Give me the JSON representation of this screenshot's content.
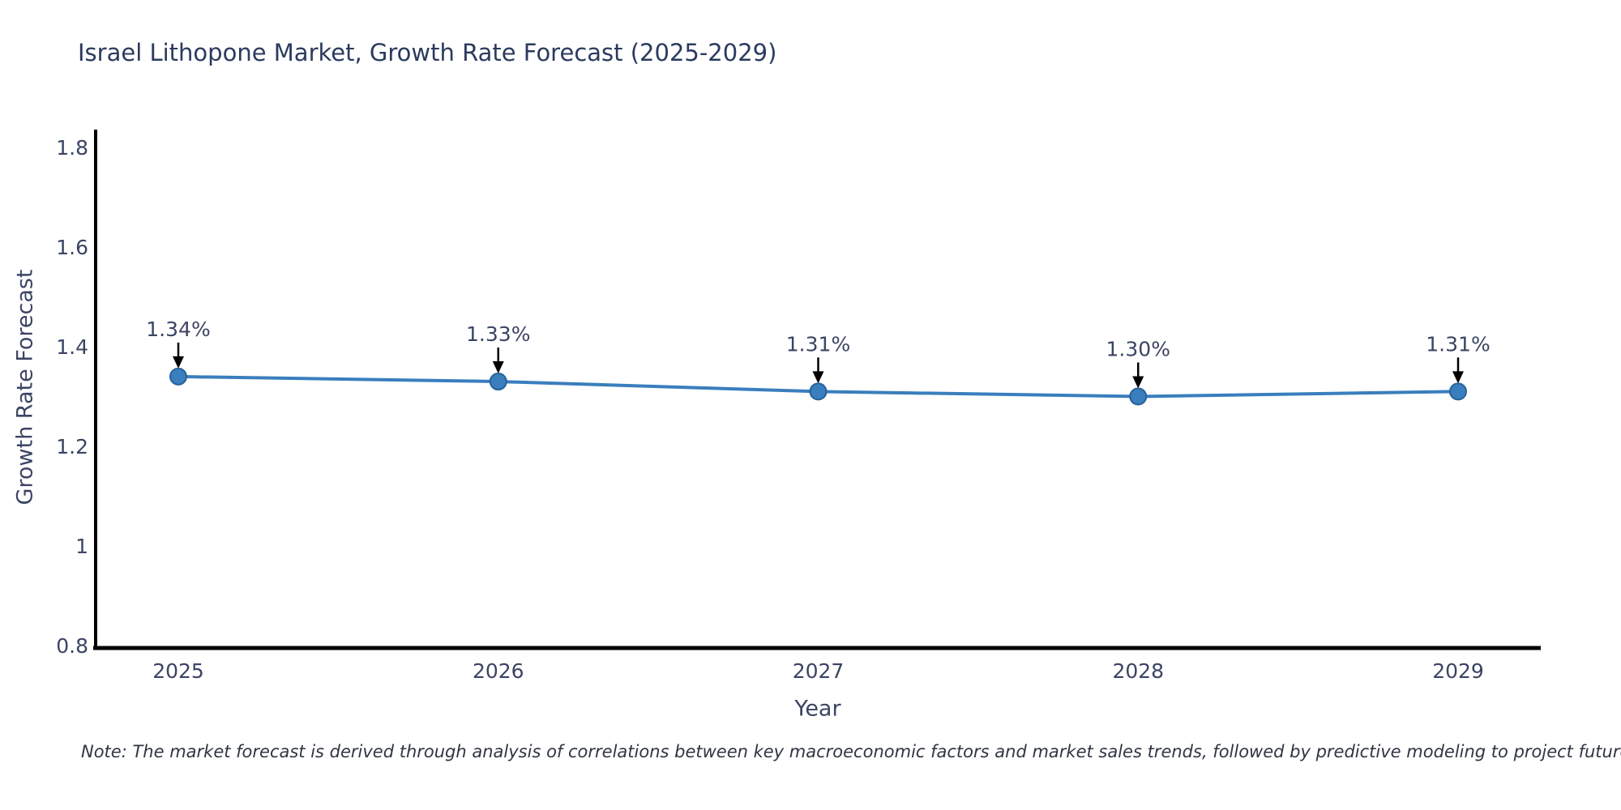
{
  "title": "Israel Lithopone Market, Growth Rate Forecast (2025-2029)",
  "note": "Note: The market forecast is derived through analysis of correlations between key macroeconomic factors and market sales trends, followed by predictive modeling to project future sales",
  "colors": {
    "title_text": "#2b3a5e",
    "axis_text": "#3b4463",
    "note_text": "#2f3542",
    "line": "#3a7ebd",
    "marker_fill": "#3a7ebd",
    "marker_edge": "#26629b",
    "spine": "#000000",
    "arrow": "#000000"
  },
  "chart_data": {
    "type": "line",
    "title": "Israel Lithopone Market, Growth Rate Forecast (2025-2029)",
    "categories": [
      "2025",
      "2026",
      "2027",
      "2028",
      "2029"
    ],
    "x": [
      2025,
      2026,
      2027,
      2028,
      2029
    ],
    "values": [
      1.34,
      1.33,
      1.31,
      1.3,
      1.31
    ],
    "point_labels": [
      "1.34%",
      "1.33%",
      "1.31%",
      "1.30%",
      "1.31%"
    ],
    "xlabel": "Year",
    "ylabel": "Growth Rate Forecast",
    "ylim": [
      0.8,
      1.8
    ],
    "yticks": [
      0.8,
      1.0,
      1.2,
      1.4,
      1.6,
      1.8
    ],
    "ytick_labels": [
      "0.8",
      "1",
      "1.2",
      "1.4",
      "1.6",
      "1.8"
    ],
    "grid": false,
    "legend_position": "none",
    "annotations_style": "value label with black down-arrow above each point"
  }
}
